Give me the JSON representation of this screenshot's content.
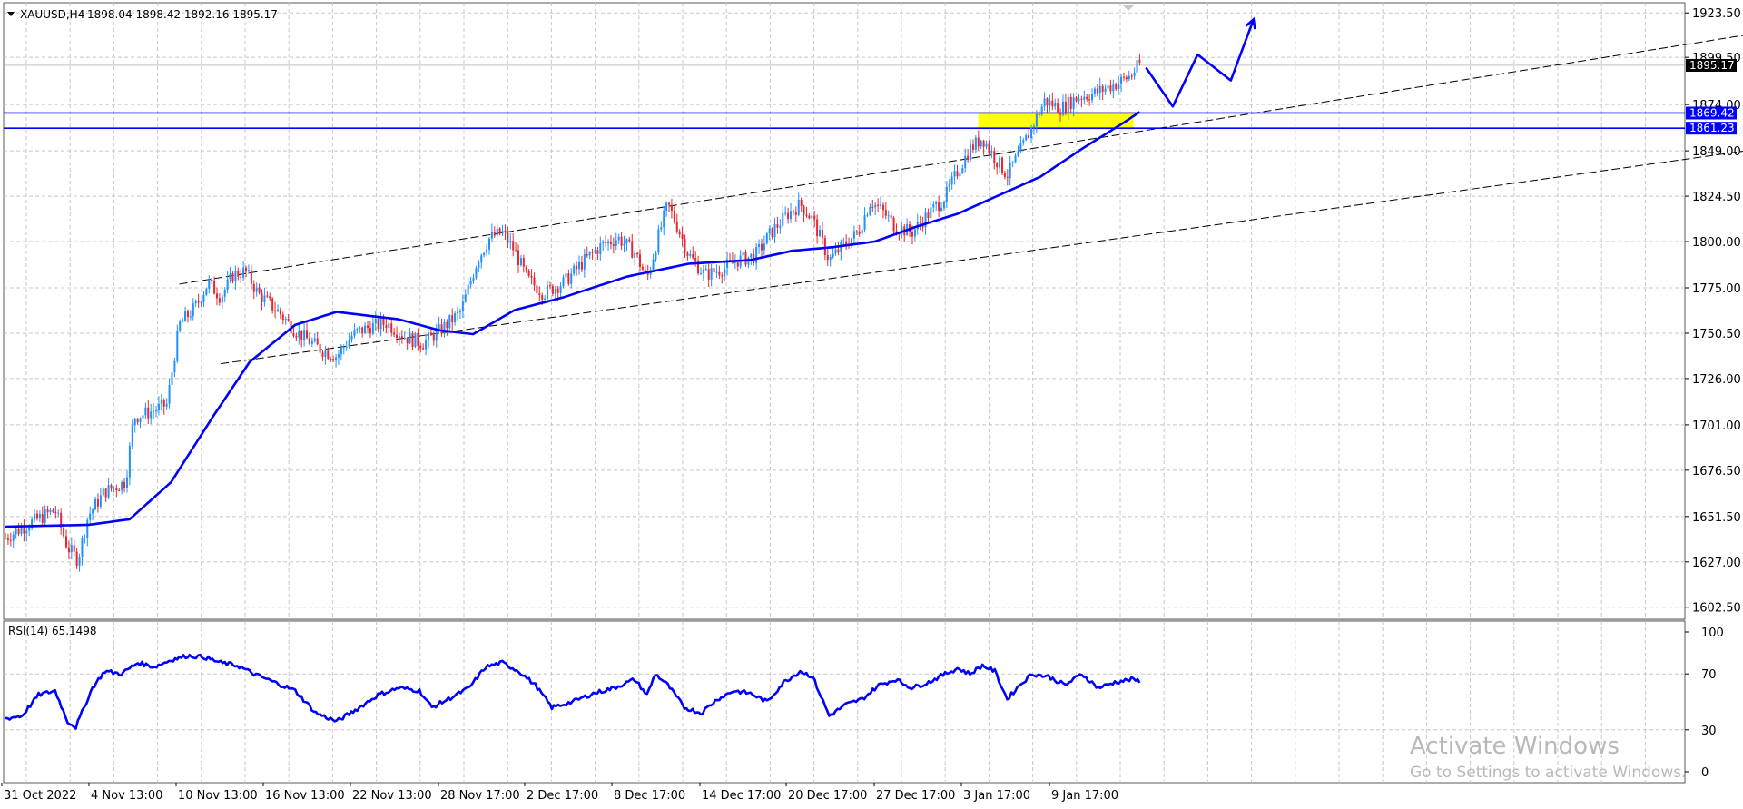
{
  "chart_data": [
    {
      "type": "candlestick",
      "header": {
        "symbol_timeframe": "XAUUSD,H4",
        "ohlc": "1898.04 1898.42 1892.16 1895.17"
      },
      "x_tick_labels": [
        "31 Oct 2022",
        "4 Nov 13:00",
        "10 Nov 13:00",
        "16 Nov 13:00",
        "22 Nov 13:00",
        "28 Nov 17:00",
        "2 Dec 17:00",
        "8 Dec 17:00",
        "14 Dec 17:00",
        "20 Dec 17:00",
        "27 Dec 17:00",
        "3 Jan 17:00",
        "9 Jan 17:00"
      ],
      "y_tick_labels": [
        "1923.50",
        "1899.50",
        "1874.00",
        "1849.00",
        "1824.50",
        "1800.00",
        "1775.00",
        "1750.50",
        "1726.00",
        "1701.00",
        "1676.50",
        "1651.50",
        "1627.00",
        "1602.50"
      ],
      "ylim": [
        1596,
        1929
      ],
      "bars_count": 430,
      "path_anchors": [
        [
          0,
          1640
        ],
        [
          12,
          1648
        ],
        [
          24,
          1655
        ],
        [
          30,
          1635
        ],
        [
          35,
          1628
        ],
        [
          40,
          1652
        ],
        [
          48,
          1665
        ],
        [
          58,
          1670
        ],
        [
          62,
          1705
        ],
        [
          70,
          1708
        ],
        [
          78,
          1712
        ],
        [
          84,
          1755
        ],
        [
          92,
          1765
        ],
        [
          98,
          1778
        ],
        [
          104,
          1770
        ],
        [
          110,
          1782
        ],
        [
          116,
          1784
        ],
        [
          122,
          1772
        ],
        [
          132,
          1762
        ],
        [
          140,
          1752
        ],
        [
          152,
          1742
        ],
        [
          160,
          1738
        ],
        [
          168,
          1750
        ],
        [
          176,
          1754
        ],
        [
          184,
          1756
        ],
        [
          194,
          1748
        ],
        [
          202,
          1745
        ],
        [
          210,
          1752
        ],
        [
          220,
          1762
        ],
        [
          228,
          1790
        ],
        [
          234,
          1802
        ],
        [
          240,
          1805
        ],
        [
          246,
          1795
        ],
        [
          252,
          1780
        ],
        [
          260,
          1772
        ],
        [
          270,
          1778
        ],
        [
          280,
          1790
        ],
        [
          288,
          1798
        ],
        [
          296,
          1802
        ],
        [
          304,
          1794
        ],
        [
          310,
          1780
        ],
        [
          316,
          1805
        ],
        [
          320,
          1820
        ],
        [
          324,
          1810
        ],
        [
          330,
          1793
        ],
        [
          338,
          1782
        ],
        [
          346,
          1785
        ],
        [
          354,
          1790
        ],
        [
          362,
          1792
        ],
        [
          370,
          1805
        ],
        [
          378,
          1815
        ],
        [
          384,
          1820
        ],
        [
          390,
          1812
        ],
        [
          398,
          1790
        ],
        [
          404,
          1797
        ],
        [
          412,
          1805
        ],
        [
          418,
          1822
        ],
        [
          424,
          1816
        ],
        [
          430,
          1808
        ],
        [
          438,
          1805
        ],
        [
          446,
          1815
        ],
        [
          454,
          1824
        ],
        [
          460,
          1838
        ],
        [
          466,
          1850
        ],
        [
          472,
          1856
        ],
        [
          478,
          1845
        ],
        [
          484,
          1836
        ],
        [
          490,
          1848
        ],
        [
          496,
          1862
        ],
        [
          502,
          1876
        ],
        [
          510,
          1872
        ],
        [
          518,
          1878
        ],
        [
          526,
          1880
        ],
        [
          532,
          1883
        ],
        [
          538,
          1886
        ],
        [
          544,
          1890
        ],
        [
          548,
          1896
        ]
      ],
      "ma_anchors": [
        [
          0,
          1646
        ],
        [
          40,
          1647
        ],
        [
          60,
          1650
        ],
        [
          80,
          1670
        ],
        [
          100,
          1705
        ],
        [
          118,
          1735
        ],
        [
          140,
          1755
        ],
        [
          160,
          1762
        ],
        [
          190,
          1758
        ],
        [
          210,
          1752
        ],
        [
          226,
          1750
        ],
        [
          246,
          1763
        ],
        [
          270,
          1770
        ],
        [
          300,
          1781
        ],
        [
          330,
          1788
        ],
        [
          360,
          1790
        ],
        [
          380,
          1795
        ],
        [
          400,
          1797
        ],
        [
          420,
          1800
        ],
        [
          440,
          1808
        ],
        [
          460,
          1815
        ],
        [
          480,
          1825
        ],
        [
          500,
          1835
        ],
        [
          520,
          1850
        ],
        [
          540,
          1864
        ],
        [
          548,
          1870
        ]
      ],
      "horizontal_lines": [
        {
          "price": 1869.42,
          "label": "1869.42",
          "color": "#0000ff"
        },
        {
          "price": 1861.23,
          "label": "1861.23",
          "color": "#0000ff"
        }
      ],
      "last_price": {
        "price": 1895.17,
        "label": "1895.17"
      },
      "trend_lines": [
        {
          "from": [
            84,
            1777
          ],
          "to": [
            860,
            1915
          ]
        },
        {
          "from": [
            104,
            1734
          ],
          "to": [
            860,
            1852
          ]
        }
      ],
      "zone": {
        "x_from": 470,
        "x_to": 545,
        "y_from": 1861.23,
        "y_to": 1869.42,
        "color": "#ffff00"
      },
      "forecast_path": [
        [
          551,
          1894
        ],
        [
          564,
          1873
        ],
        [
          576,
          1901
        ],
        [
          592,
          1887
        ],
        [
          603,
          1920
        ]
      ],
      "colors": {
        "bull": "#1e90ff",
        "bear": "#e8262c",
        "ma": "#0000ff",
        "grid": "#c8c8c8"
      }
    },
    {
      "type": "line",
      "label": "RSI(14) 65.1498",
      "ylim": [
        0,
        100
      ],
      "y_tick_labels": [
        "100",
        "70",
        "30",
        "0"
      ],
      "anchors": [
        [
          0,
          38
        ],
        [
          8,
          40
        ],
        [
          16,
          55
        ],
        [
          24,
          58
        ],
        [
          30,
          36
        ],
        [
          34,
          32
        ],
        [
          42,
          60
        ],
        [
          48,
          72
        ],
        [
          56,
          70
        ],
        [
          64,
          78
        ],
        [
          72,
          75
        ],
        [
          80,
          80
        ],
        [
          88,
          83
        ],
        [
          96,
          82
        ],
        [
          104,
          78
        ],
        [
          112,
          76
        ],
        [
          120,
          70
        ],
        [
          130,
          64
        ],
        [
          140,
          58
        ],
        [
          150,
          42
        ],
        [
          160,
          36
        ],
        [
          170,
          45
        ],
        [
          180,
          55
        ],
        [
          190,
          60
        ],
        [
          200,
          58
        ],
        [
          206,
          46
        ],
        [
          214,
          52
        ],
        [
          224,
          60
        ],
        [
          232,
          75
        ],
        [
          240,
          78
        ],
        [
          248,
          72
        ],
        [
          256,
          62
        ],
        [
          264,
          46
        ],
        [
          274,
          50
        ],
        [
          284,
          56
        ],
        [
          294,
          60
        ],
        [
          304,
          66
        ],
        [
          310,
          55
        ],
        [
          314,
          70
        ],
        [
          320,
          62
        ],
        [
          328,
          46
        ],
        [
          336,
          42
        ],
        [
          344,
          52
        ],
        [
          352,
          58
        ],
        [
          360,
          56
        ],
        [
          368,
          50
        ],
        [
          376,
          64
        ],
        [
          384,
          72
        ],
        [
          390,
          68
        ],
        [
          398,
          40
        ],
        [
          406,
          48
        ],
        [
          414,
          52
        ],
        [
          422,
          62
        ],
        [
          430,
          66
        ],
        [
          438,
          60
        ],
        [
          446,
          64
        ],
        [
          454,
          70
        ],
        [
          460,
          74
        ],
        [
          466,
          70
        ],
        [
          472,
          76
        ],
        [
          478,
          72
        ],
        [
          484,
          52
        ],
        [
          490,
          62
        ],
        [
          496,
          70
        ],
        [
          504,
          68
        ],
        [
          512,
          62
        ],
        [
          520,
          70
        ],
        [
          528,
          60
        ],
        [
          536,
          64
        ],
        [
          544,
          66
        ],
        [
          548,
          65
        ]
      ],
      "color": "#0000ff"
    }
  ],
  "watermark": {
    "title": "Activate Windows",
    "subtitle": "Go to Settings to activate Windows."
  }
}
